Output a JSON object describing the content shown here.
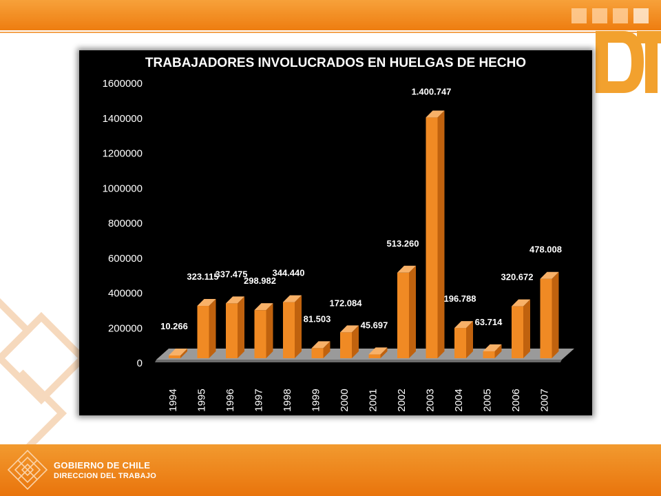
{
  "footer": {
    "org_line1": "GOBIERNO DE CHILE",
    "org_line2": "DIRECCION DEL TRABAJO"
  },
  "logo": {
    "text": "DT",
    "icon": "dt-logo"
  },
  "colors": {
    "bar_front": "#f08a24",
    "bar_side": "#c0620e",
    "bar_top": "#f8b168",
    "band": "#ee7d10",
    "chart_bg": "#000000",
    "text": "#ffffff"
  },
  "chart_data": {
    "type": "bar",
    "title": "TRABAJADORES INVOLUCRADOS EN HUELGAS DE HECHO",
    "xlabel": "",
    "ylabel": "",
    "ylim": [
      0,
      1600000
    ],
    "yticks": [
      "0",
      "200000",
      "400000",
      "600000",
      "800000",
      "1000000",
      "1200000",
      "1400000",
      "1600000"
    ],
    "categories": [
      "1994",
      "1995",
      "1996",
      "1997",
      "1998",
      "1999",
      "2000",
      "2001",
      "2002",
      "2003",
      "2004",
      "2005",
      "2006",
      "2007"
    ],
    "values": [
      10266,
      323115,
      337475,
      298982,
      344440,
      81503,
      172084,
      45697,
      513260,
      1400747,
      196788,
      63714,
      320672,
      478008
    ],
    "data_labels": [
      "10.266",
      "323.115",
      "337.475",
      "298.982",
      "344.440",
      "81.503",
      "172.084",
      "45.697",
      "513.260",
      "1.400.747",
      "196.788",
      "63.714",
      "320.672",
      "478.008"
    ],
    "grid": false,
    "legend": "none"
  }
}
